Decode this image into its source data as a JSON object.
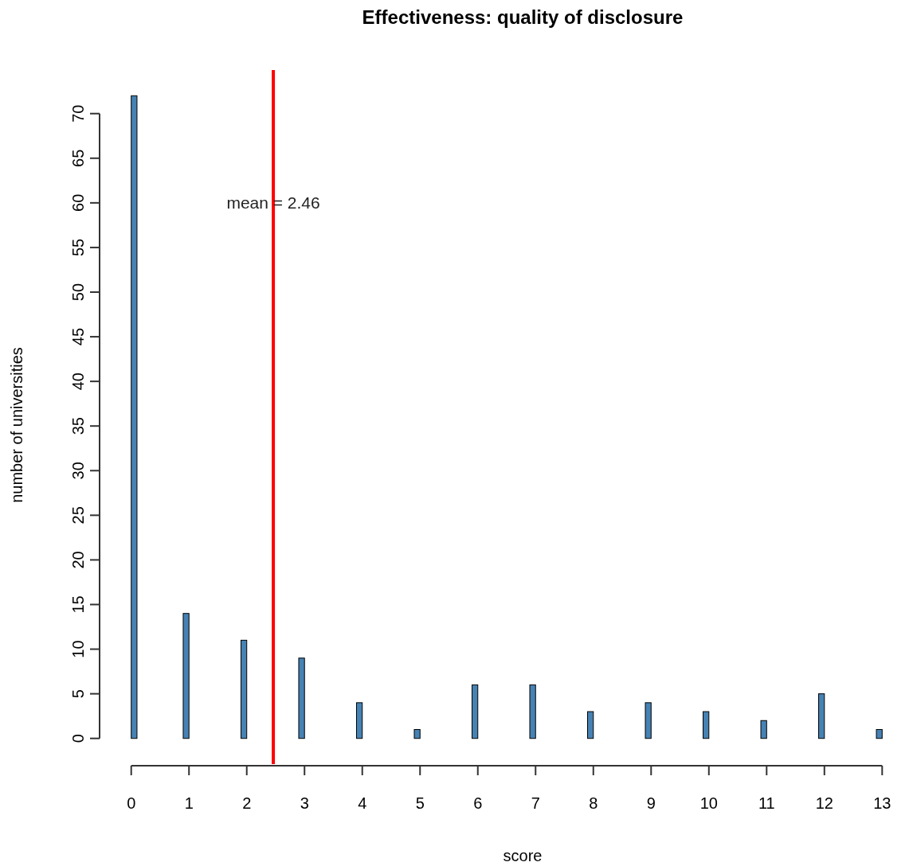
{
  "chart_data": {
    "type": "histogram",
    "title": "Effectiveness: quality of disclosure",
    "xlabel": "score",
    "ylabel": "number of universities",
    "bins": [
      0,
      0.1,
      0.9,
      1,
      1.9,
      2,
      2.9,
      3,
      3.9,
      4,
      4.9,
      5,
      5.9,
      6,
      6.9,
      7,
      7.9,
      8,
      8.9,
      9,
      9.9,
      10,
      10.9,
      11,
      11.9,
      12,
      12.9,
      13
    ],
    "values": [
      72,
      0,
      14,
      0,
      11,
      0,
      9,
      0,
      4,
      0,
      1,
      0,
      6,
      0,
      6,
      0,
      3,
      0,
      4,
      0,
      3,
      0,
      2,
      0,
      5,
      0,
      1
    ],
    "color": "#4682b4",
    "xlim": [
      -0.52,
      13.52
    ],
    "ylim": [
      -2.88,
      74.88
    ],
    "xticks": [
      0,
      1,
      2,
      3,
      4,
      5,
      6,
      7,
      8,
      9,
      10,
      11,
      12,
      13
    ],
    "yticks": [
      0,
      5,
      10,
      15,
      20,
      25,
      30,
      35,
      40,
      45,
      50,
      55,
      60,
      65,
      70
    ],
    "ref_lines": [
      {
        "axis": "x",
        "value": 2.46,
        "color": "#ff0000"
      }
    ],
    "annotations": [
      {
        "text": "mean = 2.46",
        "x": 2.46,
        "y": 60
      }
    ],
    "grid": false
  }
}
